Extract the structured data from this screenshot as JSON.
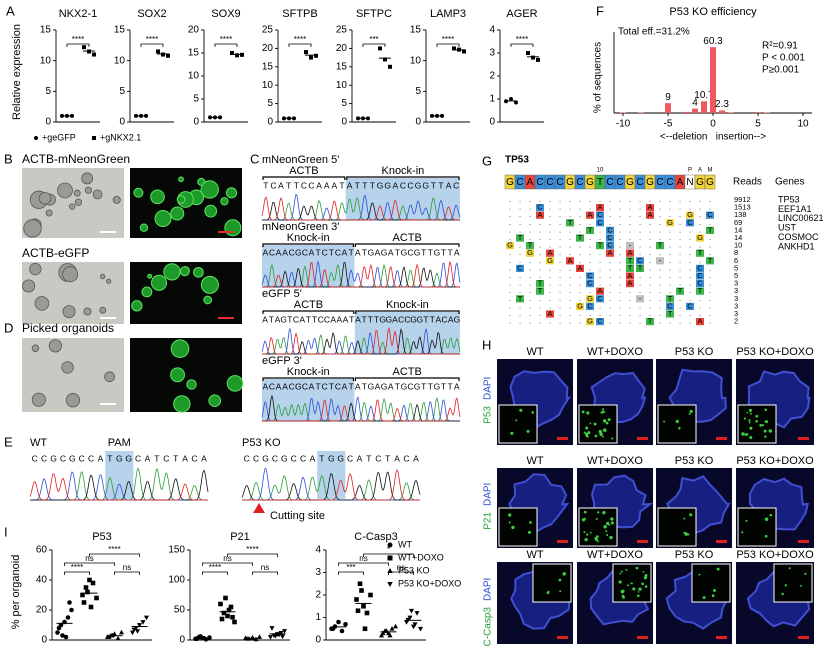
{
  "panels": {
    "A": {
      "letter": "A",
      "ylabel": "Relative expression",
      "legend": [
        {
          "label": "+geGFP",
          "marker": "circle"
        },
        {
          "label": "+gNKX2.1",
          "marker": "square"
        }
      ]
    },
    "B": {
      "letter": "B",
      "labels": [
        "ACTB-mNeonGreen",
        "ACTB-eGFP"
      ]
    },
    "C": {
      "letter": "C",
      "blocks": [
        {
          "title": "mNeonGreen 5'",
          "segments": [
            {
              "label": "ACTB",
              "sequence": "TCATTCCAAAT"
            },
            {
              "label": "Knock-in",
              "sequence": "ATTTGGACCGGTTAC",
              "shaded": true
            }
          ]
        },
        {
          "title": "mNeonGreen 3'",
          "segments": [
            {
              "label": "Knock-in",
              "sequence": "ACAACGCATCTCAT",
              "shaded": true
            },
            {
              "label": "ACTB",
              "sequence": "ATGAGATGCGTTGTTA"
            }
          ]
        },
        {
          "title": "eGFP 5'",
          "segments": [
            {
              "label": "ACTB",
              "sequence": "ATAGTCATTCCAAAT"
            },
            {
              "label": "Knock-in",
              "sequence": "ATTTGGACCGGTTACAG",
              "shaded": true
            }
          ]
        },
        {
          "title": "eGFP 3'",
          "segments": [
            {
              "label": "Knock-in",
              "sequence": "ACAACGCATCTCAT",
              "shaded": true
            },
            {
              "label": "ACTB",
              "sequence": "ATGAGATGCGTTGTTA"
            }
          ]
        }
      ]
    },
    "D": {
      "letter": "D",
      "label": "Picked organoids"
    },
    "E": {
      "letter": "E",
      "pam_label": "PAM",
      "cut_label": "Cutting site",
      "samples": [
        {
          "label": "WT",
          "segments": [
            {
              "text": "CCGCGCCA"
            },
            {
              "text": "TGG",
              "shaded": true
            },
            {
              "text": "CATCTACA"
            }
          ]
        },
        {
          "label": "P53 KO",
          "segments": [
            {
              "text": "CCGCGCCA"
            },
            {
              "text": "TGG",
              "shaded": true
            },
            {
              "text": "CATCTACA"
            }
          ]
        }
      ]
    },
    "F": {
      "letter": "F"
    },
    "G": {
      "letter": "G",
      "title": "TP53",
      "reference": "GCACCCGCGTCCGCGCCANGG",
      "position_label": "10",
      "pam_label": [
        "P",
        "A",
        "M"
      ],
      "reads_label": "Reads",
      "genes_label": "Genes",
      "colors": {
        "A": "#e8463c",
        "C": "#3b8fd9",
        "G": "#f2d43c",
        "T": "#3db54a",
        "N": "#ffffff",
        "-": "#bdbdbd"
      },
      "rows": [
        ".....................",
        "...C.....A....A......",
        "...A....AC....A...G.C",
        "......T..C......G.C..",
        "........T.C.........T",
        ".T.....T..C........G.",
        "G.T......TC.-..T.....",
        "..G.A.....A.A......T.",
        "....G.A.....TC.-....T",
        ".C.....A....TT.....C.",
        "........C...A......C.",
        "...T....C...A......C.",
        "...T.....A.......T.T.",
        ".T......GC...-..T....",
        ".......GC.......C.C..",
        "....A...........T....",
        "........GC....T....A."
      ],
      "reads": [
        9912,
        1513,
        138,
        69,
        14,
        14,
        10,
        8,
        6,
        5,
        5,
        3,
        3,
        3,
        3,
        3,
        2
      ],
      "genes": [
        "TP53",
        "EEF1A1",
        "LINC00621",
        "UST",
        "COSMOC",
        "ANKHD1"
      ]
    },
    "H": {
      "letter": "H",
      "rows": [
        {
          "stain": "P53",
          "counterstain": "DAPI",
          "columns": [
            "WT",
            "WT+DOXO",
            "P53 KO",
            "P53 KO+DOXO"
          ]
        },
        {
          "stain": "P21",
          "counterstain": "DAPI",
          "columns": [
            "WT",
            "WT+DOXO",
            "P53 KO",
            "P53 KO+DOXO"
          ]
        },
        {
          "stain": "C-Casp3",
          "counterstain": "DAPI",
          "columns": [
            "WT",
            "WT+DOXO",
            "P53 KO",
            "P53 KO+DOXO"
          ]
        }
      ]
    },
    "I": {
      "letter": "I",
      "ylabel": "% per organoid"
    }
  },
  "chart_data": [
    {
      "type": "dot",
      "title": "NKX2-1",
      "ylim": [
        0,
        15
      ],
      "yticks": [
        0,
        5,
        10,
        15
      ],
      "significance": "****",
      "series": [
        {
          "marker": "circle",
          "values": [
            1,
            1,
            1
          ]
        },
        {
          "marker": "square",
          "values": [
            12.2,
            11.5,
            11
          ]
        }
      ]
    },
    {
      "type": "dot",
      "title": "SOX2",
      "ylim": [
        0,
        15
      ],
      "yticks": [
        0,
        5,
        10,
        15
      ],
      "significance": "****",
      "series": [
        {
          "marker": "circle",
          "values": [
            1,
            1,
            1
          ]
        },
        {
          "marker": "square",
          "values": [
            11.5,
            11,
            10.8
          ]
        }
      ]
    },
    {
      "type": "dot",
      "title": "SOX9",
      "ylim": [
        0,
        20
      ],
      "yticks": [
        0,
        5,
        10,
        15,
        20
      ],
      "significance": "****",
      "series": [
        {
          "marker": "circle",
          "values": [
            1,
            1,
            1
          ]
        },
        {
          "marker": "square",
          "values": [
            15,
            14.5,
            14.6
          ]
        }
      ]
    },
    {
      "type": "dot",
      "title": "SFTPB",
      "ylim": [
        0,
        25
      ],
      "yticks": [
        0,
        5,
        10,
        15,
        20,
        25
      ],
      "significance": "****",
      "series": [
        {
          "marker": "circle",
          "values": [
            1,
            1,
            1
          ]
        },
        {
          "marker": "square",
          "values": [
            19,
            17.5,
            18
          ]
        }
      ]
    },
    {
      "type": "dot",
      "title": "SFTPC",
      "ylim": [
        0,
        25
      ],
      "yticks": [
        0,
        5,
        10,
        15,
        20,
        25
      ],
      "significance": "***",
      "series": [
        {
          "marker": "circle",
          "values": [
            1,
            1,
            1
          ]
        },
        {
          "marker": "square",
          "values": [
            20,
            17,
            15
          ]
        }
      ]
    },
    {
      "type": "dot",
      "title": "LAMP3",
      "ylim": [
        0,
        15
      ],
      "yticks": [
        0,
        5,
        10,
        15
      ],
      "significance": "****",
      "series": [
        {
          "marker": "circle",
          "values": [
            1,
            1,
            1
          ]
        },
        {
          "marker": "square",
          "values": [
            12,
            11.8,
            11.5
          ]
        }
      ]
    },
    {
      "type": "dot",
      "title": "AGER",
      "ylim": [
        0,
        4
      ],
      "yticks": [
        0,
        1,
        2,
        3,
        4
      ],
      "significance": "****",
      "series": [
        {
          "marker": "circle",
          "values": [
            0.9,
            1,
            0.85
          ]
        },
        {
          "marker": "square",
          "values": [
            3,
            2.8,
            2.7
          ]
        }
      ]
    },
    {
      "type": "bar",
      "title": "P53 KO efficiency",
      "ylabel": "% of sequences",
      "xlabel": "<--deletion   insertion-->",
      "x": [
        -10,
        -8,
        -5,
        -3,
        -2,
        -1,
        0,
        1,
        2,
        5,
        6
      ],
      "values": [
        0.5,
        0.4,
        9,
        1,
        4,
        10.7,
        60.3,
        2.3,
        0.6,
        0.8,
        0.4
      ],
      "value_labels": [
        null,
        null,
        "9",
        null,
        "4",
        "10.7",
        "60.3",
        "2.3",
        null,
        null,
        null
      ],
      "xlim": [
        -11,
        11
      ],
      "xticks": [
        -10,
        -5,
        0,
        5,
        10
      ],
      "ylim": [
        0,
        65
      ],
      "color": "#ee5a5e",
      "annotations": [
        "Total eff.=31.2%",
        "R²=0.91",
        "P < 0.001",
        "P≥0.001"
      ]
    },
    {
      "type": "dot",
      "title": "P53",
      "ylim": [
        0,
        60
      ],
      "yticks": [
        0,
        20,
        40,
        60
      ],
      "series": [
        {
          "name": "WT",
          "marker": "circle",
          "values": [
            5,
            10,
            12,
            15,
            20,
            8,
            3,
            2,
            25
          ]
        },
        {
          "name": "WT+DOXO",
          "marker": "square",
          "values": [
            30,
            35,
            40,
            38,
            28,
            25,
            32,
            22
          ]
        },
        {
          "name": "P53 KO",
          "marker": "triangle",
          "values": [
            2,
            3,
            4,
            1,
            5,
            2,
            3
          ]
        },
        {
          "name": "P53 KO+DOXO",
          "marker": "triangle-down",
          "values": [
            5,
            8,
            10,
            12,
            15,
            7,
            6
          ]
        }
      ],
      "comparisons": [
        {
          "label": "****",
          "between": [
            "WT+DOXO",
            "P53 KO+DOXO"
          ]
        },
        {
          "label": "ns",
          "between": [
            "WT",
            "P53 KO"
          ]
        },
        {
          "label": "****",
          "between": [
            "WT",
            "WT+DOXO"
          ]
        },
        {
          "label": "ns",
          "between": [
            "P53 KO",
            "P53 KO+DOXO"
          ]
        }
      ]
    },
    {
      "type": "dot",
      "title": "P21",
      "ylim": [
        0,
        150
      ],
      "yticks": [
        0,
        50,
        100,
        150
      ],
      "series": [
        {
          "name": "WT",
          "marker": "circle",
          "values": [
            2,
            5,
            3,
            1,
            4,
            2,
            6,
            3
          ]
        },
        {
          "name": "WT+DOXO",
          "marker": "square",
          "values": [
            60,
            45,
            40,
            55,
            30,
            35,
            70,
            50,
            38
          ]
        },
        {
          "name": "P53 KO",
          "marker": "triangle",
          "values": [
            3,
            2,
            4,
            1,
            5,
            2
          ]
        },
        {
          "name": "P53 KO+DOXO",
          "marker": "triangle-down",
          "values": [
            5,
            8,
            10,
            12,
            15,
            20,
            7,
            9,
            6
          ]
        }
      ],
      "comparisons": [
        {
          "label": "****",
          "between": [
            "WT+DOXO",
            "P53 KO+DOXO"
          ]
        },
        {
          "label": "ns",
          "between": [
            "WT",
            "P53 KO"
          ]
        },
        {
          "label": "****",
          "between": [
            "WT",
            "WT+DOXO"
          ]
        },
        {
          "label": "ns",
          "between": [
            "P53 KO",
            "P53 KO+DOXO"
          ]
        }
      ]
    },
    {
      "type": "dot",
      "title": "C-Casp3",
      "ylim": [
        0,
        4
      ],
      "yticks": [
        0,
        1,
        2,
        3,
        4
      ],
      "series": [
        {
          "name": "WT",
          "marker": "circle",
          "values": [
            0.5,
            0.6,
            0.8,
            0.4,
            0.7,
            0.5
          ]
        },
        {
          "name": "WT+DOXO",
          "marker": "square",
          "values": [
            1.8,
            2.5,
            1.5,
            1.2,
            2,
            1.3,
            2.2,
            0.5
          ]
        },
        {
          "name": "P53 KO",
          "marker": "triangle",
          "values": [
            0.2,
            0.4,
            0.3,
            0.5,
            0.6,
            0.3,
            0.4,
            0.2
          ]
        },
        {
          "name": "P53 KO+DOXO",
          "marker": "triangle-down",
          "values": [
            0.8,
            1,
            0.6,
            1.2,
            0.5,
            0.9,
            1.3,
            0.7
          ]
        }
      ],
      "comparisons": [
        {
          "label": "*",
          "between": [
            "WT+DOXO",
            "P53 KO+DOXO"
          ]
        },
        {
          "label": "ns",
          "between": [
            "WT",
            "P53 KO"
          ]
        },
        {
          "label": "***",
          "between": [
            "WT",
            "WT+DOXO"
          ]
        },
        {
          "label": "ns",
          "between": [
            "P53 KO",
            "P53 KO+DOXO"
          ]
        }
      ]
    }
  ]
}
